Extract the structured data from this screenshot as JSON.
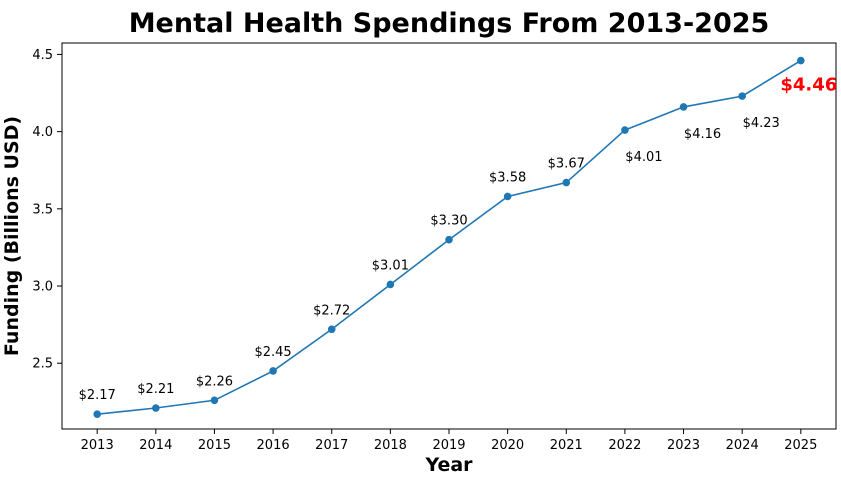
{
  "chart_data": {
    "type": "line",
    "title": "Mental Health Spendings From 2013-2025",
    "xlabel": "Year",
    "ylabel": "Funding (Billions USD)",
    "x": [
      2013,
      2014,
      2015,
      2016,
      2017,
      2018,
      2019,
      2020,
      2021,
      2022,
      2023,
      2024,
      2025
    ],
    "series": [
      {
        "values": [
          2.17,
          2.21,
          2.26,
          2.45,
          2.72,
          3.01,
          3.3,
          3.58,
          3.67,
          4.01,
          4.16,
          4.23,
          4.46
        ],
        "color": "#1f77b4"
      }
    ],
    "data_labels": [
      "$2.17",
      "$2.21",
      "$2.26",
      "$2.45",
      "$2.72",
      "$3.01",
      "$3.30",
      "$3.58",
      "$3.67",
      "$4.01",
      "$4.16",
      "$4.23",
      "$4.46"
    ],
    "highlight": {
      "index": 12,
      "color": "#ff0000"
    },
    "yticks": [
      "2.5",
      "3.0",
      "3.5",
      "4.0",
      "4.5"
    ],
    "ylim": [
      2.074,
      4.574
    ],
    "grid": false,
    "legend": "none"
  }
}
